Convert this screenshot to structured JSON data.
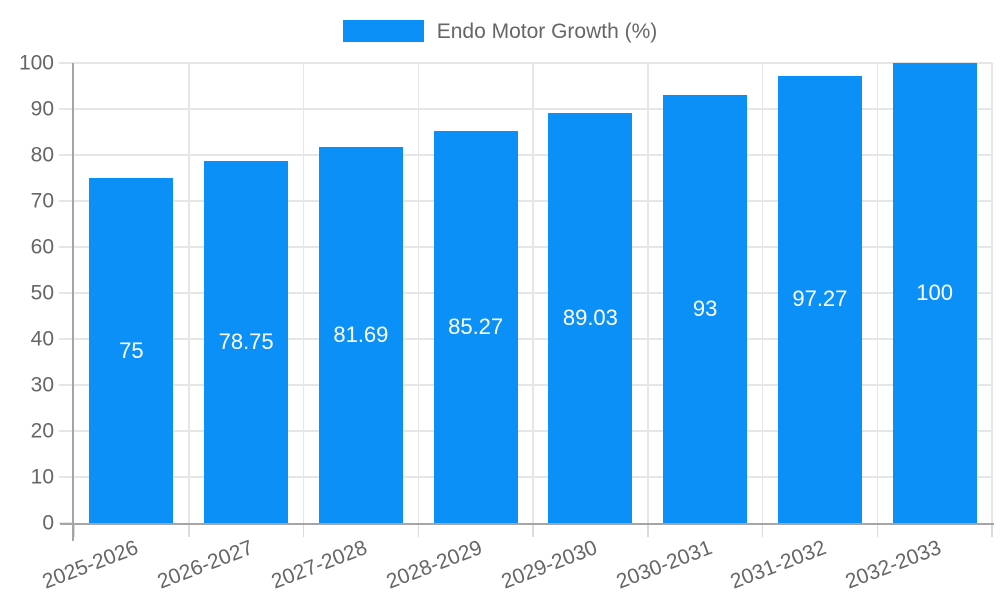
{
  "legend": {
    "label": "Endo Motor Growth (%)"
  },
  "chart_data": {
    "type": "bar",
    "title": "Endo Motor Growth (%)",
    "series_name": "Endo Motor Growth (%)",
    "categories": [
      "2025-2026",
      "2026-2027",
      "2027-2028",
      "2028-2029",
      "2029-2030",
      "2030-2031",
      "2031-2032",
      "2032-2033"
    ],
    "values": [
      75,
      78.75,
      81.69,
      85.27,
      89.03,
      93,
      97.27,
      100
    ],
    "value_labels": [
      "75",
      "78.75",
      "81.69",
      "85.27",
      "89.03",
      "93",
      "97.27",
      "100"
    ],
    "xlabel": "",
    "ylabel": "",
    "ylim": [
      0,
      100
    ],
    "yticks": [
      0,
      10,
      20,
      30,
      40,
      50,
      60,
      70,
      80,
      90,
      100
    ],
    "grid": true,
    "legend_position": "top",
    "colors": {
      "bar": "#0b90f8",
      "grid": "#e6e6e6",
      "tick_mark": "#dcdcdc",
      "axis": "#a5a5a5",
      "tick_text": "#666666",
      "legend_text": "#666666",
      "value_label": "#ffffff"
    }
  }
}
